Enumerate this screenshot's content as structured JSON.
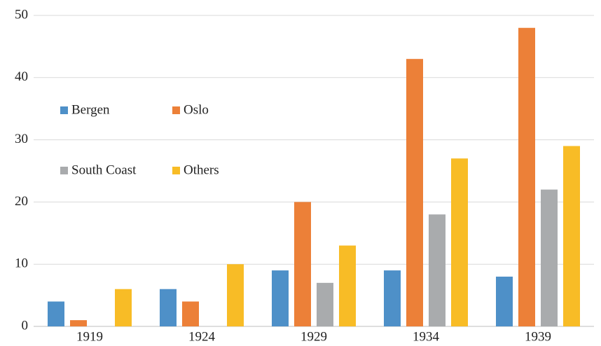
{
  "chart_data": {
    "type": "bar",
    "categories": [
      "1919",
      "1924",
      "1929",
      "1934",
      "1939"
    ],
    "series": [
      {
        "name": "Bergen",
        "color": "#4e90c8",
        "values": [
          4,
          6,
          9,
          9,
          8
        ]
      },
      {
        "name": "Oslo",
        "color": "#ec8038",
        "values": [
          1,
          4,
          20,
          43,
          48
        ]
      },
      {
        "name": "South Coast",
        "color": "#a9abad",
        "values": [
          0,
          0,
          7,
          18,
          22
        ]
      },
      {
        "name": "Others",
        "color": "#f8bc26",
        "values": [
          6,
          10,
          13,
          27,
          29
        ]
      }
    ],
    "ylim": [
      0,
      50
    ],
    "yticks": [
      0,
      10,
      20,
      30,
      40,
      50
    ],
    "grid": true,
    "legend": "left"
  }
}
